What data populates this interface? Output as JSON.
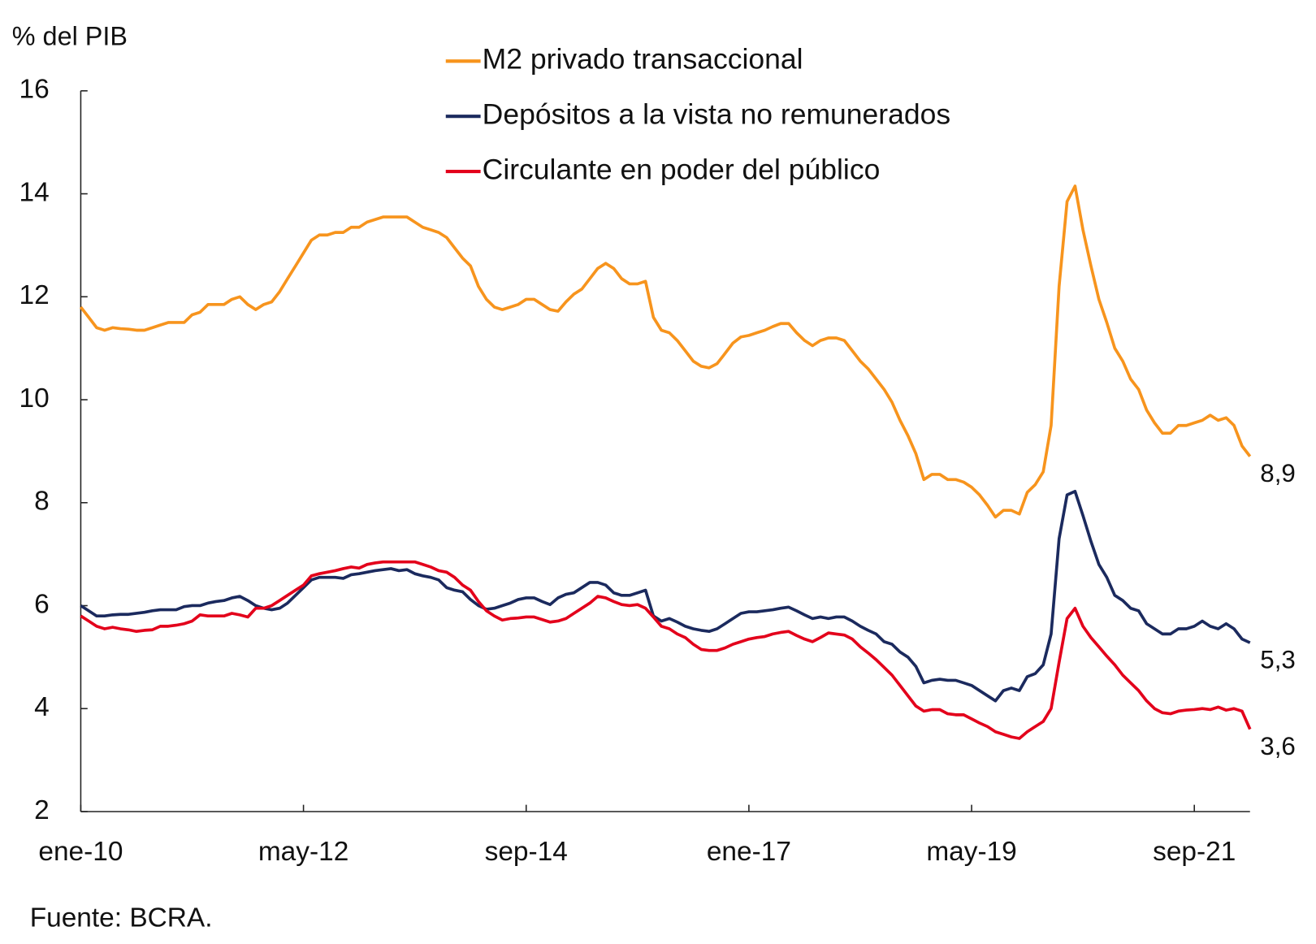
{
  "chart_data": {
    "type": "line",
    "y_label": "% del PIB",
    "source": "Fuente: BCRA.",
    "categories": [
      "ene-10",
      null,
      null,
      null,
      null,
      null,
      null,
      null,
      null,
      null,
      null,
      null,
      null,
      null,
      null,
      null,
      null,
      null,
      null,
      null,
      null,
      null,
      null,
      null,
      null,
      null,
      null,
      null,
      "may-12",
      null,
      null,
      null,
      null,
      null,
      null,
      null,
      null,
      null,
      null,
      null,
      null,
      null,
      null,
      null,
      null,
      null,
      null,
      null,
      null,
      null,
      null,
      null,
      null,
      null,
      null,
      null,
      "sep-14",
      null,
      null,
      null,
      null,
      null,
      null,
      null,
      null,
      null,
      null,
      null,
      null,
      null,
      null,
      null,
      null,
      null,
      null,
      null,
      null,
      null,
      null,
      null,
      null,
      null,
      null,
      null,
      "ene-17",
      null,
      null,
      null,
      null,
      null,
      null,
      null,
      null,
      null,
      null,
      null,
      null,
      null,
      null,
      null,
      null,
      null,
      null,
      null,
      null,
      null,
      null,
      null,
      null,
      null,
      null,
      null,
      "may-19",
      null,
      null,
      null,
      null,
      null,
      null,
      null,
      null,
      null,
      null,
      null,
      null,
      null,
      null,
      null,
      null,
      null,
      null,
      null,
      null,
      null,
      null,
      null,
      null,
      null,
      null,
      null,
      "sep-21",
      null,
      null,
      null,
      null,
      null,
      null,
      null
    ],
    "series": [
      {
        "name": "M2 privado transaccional",
        "color": "#F7941D",
        "values": [
          11.8,
          11.6,
          11.4,
          11.35,
          11.4,
          11.38,
          11.37,
          11.35,
          11.35,
          11.4,
          11.45,
          11.5,
          11.5,
          11.5,
          11.65,
          11.7,
          11.85,
          11.85,
          11.85,
          11.95,
          12.0,
          11.85,
          11.75,
          11.85,
          11.9,
          12.1,
          12.35,
          12.6,
          12.85,
          13.1,
          13.2,
          13.2,
          13.25,
          13.25,
          13.35,
          13.35,
          13.45,
          13.5,
          13.55,
          13.55,
          13.55,
          13.55,
          13.45,
          13.35,
          13.3,
          13.25,
          13.15,
          12.95,
          12.75,
          12.6,
          12.2,
          11.95,
          11.8,
          11.75,
          11.8,
          11.85,
          11.95,
          11.95,
          11.85,
          11.75,
          11.72,
          11.9,
          12.05,
          12.15,
          12.35,
          12.55,
          12.65,
          12.55,
          12.35,
          12.25,
          12.25,
          12.3,
          11.6,
          11.35,
          11.3,
          11.15,
          10.95,
          10.75,
          10.65,
          10.62,
          10.7,
          10.9,
          11.1,
          11.22,
          11.25,
          11.3,
          11.35,
          11.42,
          11.48,
          11.48,
          11.3,
          11.15,
          11.05,
          11.15,
          11.2,
          11.2,
          11.15,
          10.95,
          10.75,
          10.6,
          10.4,
          10.2,
          9.95,
          9.6,
          9.3,
          8.95,
          8.45,
          8.55,
          8.55,
          8.45,
          8.45,
          8.4,
          8.3,
          8.15,
          7.95,
          7.72,
          7.85,
          7.85,
          7.78,
          8.2,
          8.35,
          8.6,
          9.5,
          12.2,
          13.85,
          14.15,
          13.3,
          12.6,
          11.95,
          11.5,
          11.0,
          10.75,
          10.4,
          10.2,
          9.8,
          9.55,
          9.35,
          9.35,
          9.5,
          9.5,
          9.55,
          9.6,
          9.7,
          9.6,
          9.65,
          9.5,
          9.1,
          8.9
        ],
        "value_labels": {
          "147": "8,9"
        }
      },
      {
        "name": "Depósitos a la vista no remunerados",
        "color": "#1B2A5E",
        "values": [
          6.0,
          5.9,
          5.8,
          5.8,
          5.82,
          5.83,
          5.83,
          5.85,
          5.87,
          5.9,
          5.92,
          5.92,
          5.92,
          5.98,
          6.0,
          6.0,
          6.05,
          6.08,
          6.1,
          6.15,
          6.18,
          6.1,
          6.0,
          5.95,
          5.92,
          5.95,
          6.05,
          6.2,
          6.35,
          6.5,
          6.55,
          6.55,
          6.55,
          6.53,
          6.6,
          6.62,
          6.65,
          6.68,
          6.7,
          6.72,
          6.68,
          6.7,
          6.62,
          6.58,
          6.55,
          6.5,
          6.35,
          6.3,
          6.27,
          6.12,
          6.0,
          5.93,
          5.95,
          6.0,
          6.05,
          6.12,
          6.15,
          6.15,
          6.08,
          6.02,
          6.15,
          6.22,
          6.25,
          6.35,
          6.45,
          6.45,
          6.4,
          6.25,
          6.2,
          6.2,
          6.25,
          6.3,
          5.8,
          5.7,
          5.75,
          5.68,
          5.6,
          5.55,
          5.52,
          5.5,
          5.55,
          5.65,
          5.75,
          5.85,
          5.88,
          5.88,
          5.9,
          5.92,
          5.95,
          5.97,
          5.9,
          5.82,
          5.75,
          5.78,
          5.75,
          5.78,
          5.78,
          5.7,
          5.6,
          5.52,
          5.45,
          5.3,
          5.25,
          5.1,
          5.0,
          4.82,
          4.5,
          4.55,
          4.57,
          4.55,
          4.55,
          4.5,
          4.45,
          4.35,
          4.25,
          4.15,
          4.35,
          4.4,
          4.35,
          4.62,
          4.68,
          4.85,
          5.45,
          7.3,
          8.15,
          8.22,
          7.75,
          7.25,
          6.8,
          6.55,
          6.2,
          6.1,
          5.95,
          5.9,
          5.65,
          5.55,
          5.45,
          5.45,
          5.55,
          5.55,
          5.6,
          5.7,
          5.6,
          5.55,
          5.65,
          5.55,
          5.35,
          5.28
        ],
        "value_labels": {
          "147": "5,3"
        }
      },
      {
        "name": "Circulante en poder del público",
        "color": "#E3001B",
        "values": [
          5.8,
          5.7,
          5.6,
          5.55,
          5.58,
          5.55,
          5.53,
          5.5,
          5.52,
          5.53,
          5.6,
          5.6,
          5.62,
          5.65,
          5.7,
          5.82,
          5.8,
          5.8,
          5.8,
          5.85,
          5.82,
          5.78,
          5.95,
          5.95,
          6.0,
          6.1,
          6.2,
          6.3,
          6.4,
          6.58,
          6.62,
          6.65,
          6.68,
          6.72,
          6.75,
          6.73,
          6.8,
          6.83,
          6.85,
          6.85,
          6.85,
          6.85,
          6.85,
          6.8,
          6.75,
          6.68,
          6.65,
          6.55,
          6.4,
          6.3,
          6.08,
          5.9,
          5.8,
          5.72,
          5.75,
          5.76,
          5.78,
          5.78,
          5.73,
          5.68,
          5.7,
          5.75,
          5.85,
          5.95,
          6.05,
          6.18,
          6.15,
          6.08,
          6.02,
          6.0,
          6.02,
          5.95,
          5.78,
          5.6,
          5.55,
          5.45,
          5.38,
          5.25,
          5.15,
          5.13,
          5.13,
          5.18,
          5.25,
          5.3,
          5.35,
          5.38,
          5.4,
          5.45,
          5.48,
          5.5,
          5.42,
          5.35,
          5.3,
          5.38,
          5.47,
          5.45,
          5.43,
          5.35,
          5.2,
          5.08,
          4.95,
          4.8,
          4.65,
          4.45,
          4.25,
          4.05,
          3.95,
          3.98,
          3.98,
          3.9,
          3.88,
          3.88,
          3.8,
          3.72,
          3.65,
          3.55,
          3.5,
          3.45,
          3.42,
          3.55,
          3.65,
          3.75,
          4.0,
          4.9,
          5.75,
          5.95,
          5.6,
          5.38,
          5.2,
          5.02,
          4.85,
          4.65,
          4.5,
          4.35,
          4.15,
          4.0,
          3.92,
          3.9,
          3.95,
          3.97,
          3.98,
          4.0,
          3.98,
          4.03,
          3.97,
          4.0,
          3.95,
          3.6
        ],
        "value_labels": {
          "147": "3,6"
        }
      }
    ],
    "ylim": [
      2,
      16
    ],
    "yticks": [
      2,
      4,
      6,
      8,
      10,
      12,
      14,
      16
    ],
    "grid": false
  }
}
